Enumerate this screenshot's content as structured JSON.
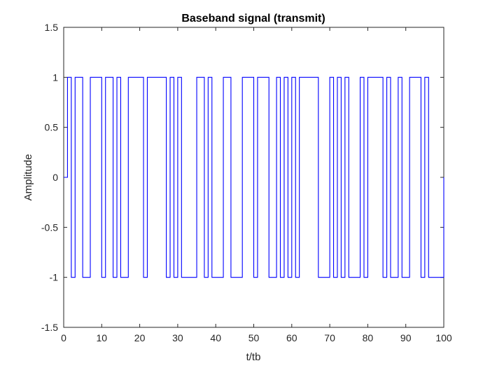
{
  "chart_data": {
    "type": "line",
    "title": "Baseband signal (transmit)",
    "xlabel": "t/tb",
    "ylabel": "Amplitude",
    "xlim": [
      0,
      100
    ],
    "ylim": [
      -1.5,
      1.5
    ],
    "xticks": [
      0,
      10,
      20,
      30,
      40,
      50,
      60,
      70,
      80,
      90,
      100
    ],
    "xtick_labels": [
      "0",
      "10",
      "20",
      "30",
      "40",
      "50",
      "60",
      "70",
      "80",
      "90",
      "100"
    ],
    "yticks": [
      1.5,
      1,
      0.5,
      0,
      -0.5,
      -1,
      -1.5
    ],
    "ytick_labels": [
      "1.5",
      "1",
      "0.5",
      "0",
      "-0.5",
      "-1",
      "-1.5"
    ],
    "grid": false,
    "series": [
      {
        "color": "#0000ff",
        "style": "step",
        "x": [
          0,
          1,
          2,
          3,
          4,
          5,
          6,
          7,
          8,
          9,
          10,
          11,
          12,
          13,
          14,
          15,
          16,
          17,
          18,
          19,
          20,
          21,
          22,
          23,
          24,
          25,
          26,
          27,
          28,
          29,
          30,
          31,
          32,
          33,
          34,
          35,
          36,
          37,
          38,
          39,
          40,
          41,
          42,
          43,
          44,
          45,
          46,
          47,
          48,
          49,
          50,
          51,
          52,
          53,
          54,
          55,
          56,
          57,
          58,
          59,
          60,
          61,
          62,
          63,
          64,
          65,
          66,
          67,
          68,
          69,
          70,
          71,
          72,
          73,
          74,
          75,
          76,
          77,
          78,
          79,
          80,
          81,
          82,
          83,
          84,
          85,
          86,
          87,
          88,
          89,
          90,
          91,
          92,
          93,
          94,
          95,
          96,
          97,
          98,
          99,
          100
        ],
        "y": [
          0,
          1,
          -1,
          1,
          1,
          -1,
          -1,
          1,
          1,
          1,
          -1,
          1,
          1,
          -1,
          1,
          -1,
          -1,
          1,
          1,
          1,
          1,
          -1,
          1,
          1,
          1,
          1,
          1,
          -1,
          1,
          -1,
          1,
          -1,
          -1,
          -1,
          -1,
          1,
          1,
          -1,
          1,
          -1,
          -1,
          -1,
          1,
          1,
          -1,
          -1,
          -1,
          1,
          1,
          1,
          -1,
          1,
          1,
          1,
          -1,
          -1,
          1,
          -1,
          1,
          -1,
          1,
          -1,
          1,
          1,
          1,
          1,
          1,
          -1,
          -1,
          -1,
          1,
          -1,
          1,
          -1,
          1,
          -1,
          -1,
          -1,
          1,
          -1,
          1,
          1,
          1,
          1,
          -1,
          1,
          -1,
          -1,
          1,
          -1,
          -1,
          1,
          1,
          1,
          -1,
          1,
          -1,
          -1,
          -1,
          -1,
          0
        ]
      }
    ]
  }
}
